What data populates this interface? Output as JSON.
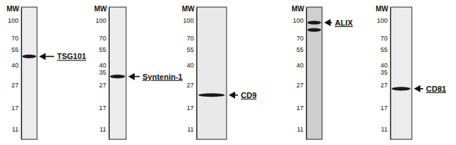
{
  "chart_data": [
    {
      "type": "blot",
      "y_label": "MW",
      "annotation": "TSG101",
      "log": "y",
      "ylim": [
        9,
        130
      ],
      "yticks": [
        100,
        70,
        55,
        40,
        27,
        17,
        11
      ],
      "values": [
        48
      ],
      "color": "#1a1a1a"
    },
    {
      "type": "blot",
      "y_label": "MW",
      "annotation": "Syntenin-1",
      "log": "y",
      "ylim": [
        9,
        130
      ],
      "yticks": [
        100,
        70,
        55,
        40,
        35,
        27,
        17,
        11
      ],
      "values": [
        32
      ],
      "color": "#1a1a1a"
    },
    {
      "type": "blot",
      "y_label": "MW",
      "annotation": "CD9",
      "log": "y",
      "ylim": [
        9,
        130
      ],
      "yticks": [
        100,
        70,
        55,
        40,
        27,
        17,
        11
      ],
      "values": [
        22
      ],
      "color": "#1a1a1a"
    },
    {
      "type": "blot",
      "y_label": "MW",
      "annotation": "ALIX",
      "log": "y",
      "ylim": [
        9,
        130
      ],
      "yticks": [
        100,
        70,
        55,
        40,
        27,
        17,
        11
      ],
      "values": [
        95,
        82
      ],
      "color": "#1a1a1a"
    },
    {
      "type": "blot",
      "y_label": "MW",
      "annotation": "CD81",
      "log": "y",
      "ylim": [
        9,
        130
      ],
      "yticks": [
        100,
        70,
        55,
        40,
        35,
        27,
        17,
        11
      ],
      "values": [
        25
      ],
      "color": "#1a1a1a"
    }
  ]
}
